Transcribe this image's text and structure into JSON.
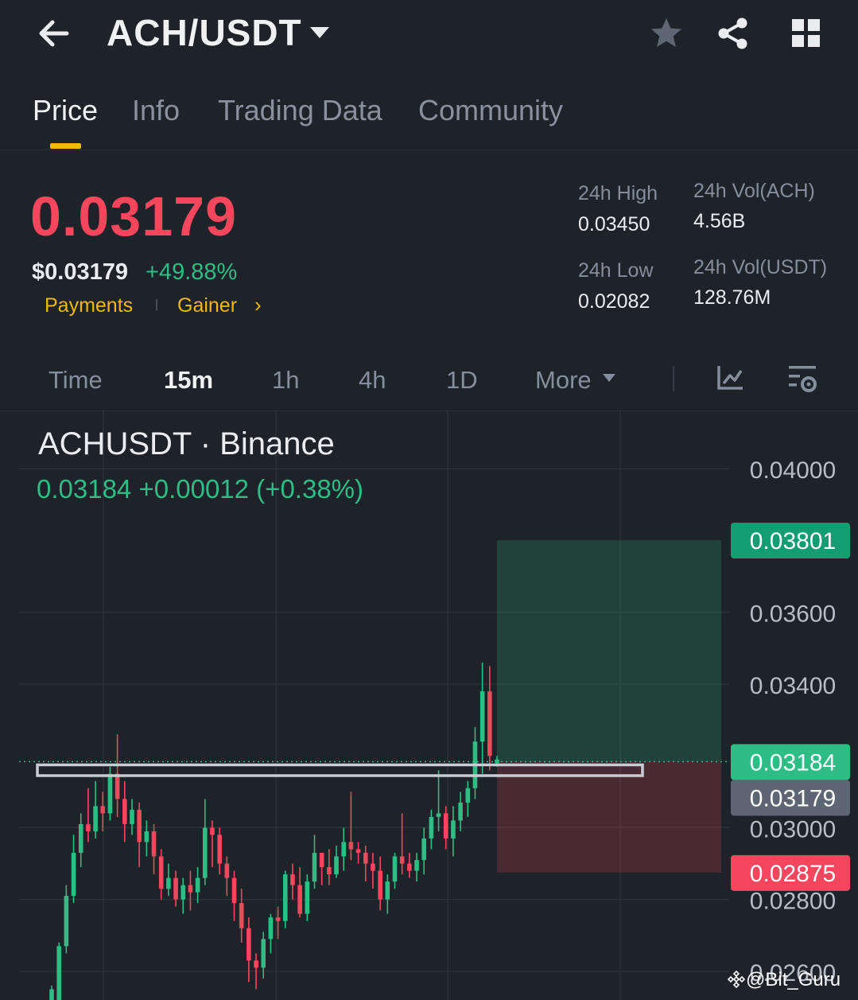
{
  "header": {
    "title": "ACH/USDT",
    "icons": [
      "back-arrow-icon",
      "chevron-down-icon",
      "star-icon",
      "share-icon",
      "grid-icon"
    ]
  },
  "tabs": [
    {
      "label": "Price",
      "active": true
    },
    {
      "label": "Info",
      "active": false
    },
    {
      "label": "Trading Data",
      "active": false
    },
    {
      "label": "Community",
      "active": false
    }
  ],
  "price": {
    "last": "0.03179",
    "usd": "$0.03179",
    "change": "+49.88%",
    "tags": [
      "Payments",
      "Gainer"
    ],
    "chevron": "›"
  },
  "stats": {
    "high_label": "24h High",
    "high_value": "0.03450",
    "low_label": "24h Low",
    "low_value": "0.02082",
    "vol_base_label": "24h Vol(ACH)",
    "vol_base_value": "4.56B",
    "vol_quote_label": "24h Vol(USDT)",
    "vol_quote_value": "128.76M"
  },
  "intervals": [
    {
      "label": "Time",
      "active": false
    },
    {
      "label": "15m",
      "active": true
    },
    {
      "label": "1h",
      "active": false
    },
    {
      "label": "4h",
      "active": false
    },
    {
      "label": "1D",
      "active": false
    },
    {
      "label": "More",
      "active": false
    }
  ],
  "chart_header": {
    "title": "ACHUSDT · Binance",
    "ohlc": "0.03184  +0.00012 (+0.38%)"
  },
  "colors": {
    "up": "#2ebd85",
    "down": "#f6465d",
    "accent": "#f0b90b",
    "background": "#1e2329"
  },
  "watermark": "@Bit_Guru",
  "chart_data": {
    "type": "candlestick",
    "title": "ACHUSDT · Binance",
    "ylim": [
      0.0252,
      0.0416
    ],
    "y_ticks": [
      "0.04000",
      "0.03600",
      "0.03400",
      "0.03000",
      "0.02800",
      "0.02600"
    ],
    "price_labels": [
      {
        "label": "0.03801",
        "value": 0.03801,
        "kind": "take-profit"
      },
      {
        "label": "0.03184",
        "value": 0.03184,
        "kind": "current"
      },
      {
        "label": "0.03179",
        "value": 0.03179,
        "kind": "last"
      },
      {
        "label": "0.02875",
        "value": 0.02875,
        "kind": "stop-loss"
      }
    ],
    "position": {
      "entry": 0.03184,
      "target": 0.03801,
      "stop": 0.02875
    },
    "resistance_zone": [
      0.03145,
      0.03175
    ],
    "candles": [
      [
        0.0247,
        0.0255,
        0.0244,
        0.0256
      ],
      [
        0.0243,
        0.0267,
        0.0241,
        0.0268
      ],
      [
        0.0267,
        0.0281,
        0.0265,
        0.0284
      ],
      [
        0.0281,
        0.0293,
        0.0279,
        0.0298
      ],
      [
        0.0293,
        0.0301,
        0.0289,
        0.0304
      ],
      [
        0.0301,
        0.0299,
        0.0296,
        0.0311
      ],
      [
        0.0299,
        0.0306,
        0.0297,
        0.0313
      ],
      [
        0.0306,
        0.0304,
        0.0299,
        0.031
      ],
      [
        0.0304,
        0.0315,
        0.0302,
        0.0317
      ],
      [
        0.0315,
        0.0308,
        0.0303,
        0.0326
      ],
      [
        0.0308,
        0.0301,
        0.0296,
        0.0313
      ],
      [
        0.0301,
        0.0305,
        0.0298,
        0.0308
      ],
      [
        0.0305,
        0.0296,
        0.0289,
        0.0307
      ],
      [
        0.0296,
        0.0299,
        0.0292,
        0.0302
      ],
      [
        0.0299,
        0.0292,
        0.0287,
        0.0301
      ],
      [
        0.0292,
        0.0283,
        0.028,
        0.0294
      ],
      [
        0.0283,
        0.0286,
        0.0281,
        0.029
      ],
      [
        0.0286,
        0.028,
        0.0278,
        0.0288
      ],
      [
        0.028,
        0.0284,
        0.0276,
        0.0286
      ],
      [
        0.0284,
        0.0282,
        0.0277,
        0.0288
      ],
      [
        0.0282,
        0.0286,
        0.0279,
        0.0289
      ],
      [
        0.0286,
        0.03,
        0.0284,
        0.0308
      ],
      [
        0.03,
        0.0298,
        0.0289,
        0.0302
      ],
      [
        0.0298,
        0.029,
        0.0287,
        0.03
      ],
      [
        0.029,
        0.0286,
        0.0281,
        0.0292
      ],
      [
        0.0286,
        0.0279,
        0.0274,
        0.0288
      ],
      [
        0.0279,
        0.0272,
        0.0268,
        0.0283
      ],
      [
        0.0272,
        0.0263,
        0.0257,
        0.0275
      ],
      [
        0.0263,
        0.0261,
        0.0255,
        0.0265
      ],
      [
        0.0261,
        0.0269,
        0.0258,
        0.0271
      ],
      [
        0.0269,
        0.0275,
        0.0265,
        0.0276
      ],
      [
        0.0275,
        0.0274,
        0.0269,
        0.0278
      ],
      [
        0.0274,
        0.0287,
        0.0272,
        0.0288
      ],
      [
        0.0287,
        0.0284,
        0.028,
        0.029
      ],
      [
        0.0284,
        0.0276,
        0.0275,
        0.0289
      ],
      [
        0.0276,
        0.0285,
        0.0274,
        0.0287
      ],
      [
        0.0285,
        0.0293,
        0.0283,
        0.0298
      ],
      [
        0.0293,
        0.0289,
        0.0284,
        0.0293
      ],
      [
        0.0289,
        0.0287,
        0.0284,
        0.0294
      ],
      [
        0.0287,
        0.0292,
        0.0286,
        0.0295
      ],
      [
        0.0292,
        0.0296,
        0.0288,
        0.03
      ],
      [
        0.0296,
        0.0294,
        0.0291,
        0.031
      ],
      [
        0.0294,
        0.0293,
        0.029,
        0.0296
      ],
      [
        0.0293,
        0.029,
        0.0285,
        0.0295
      ],
      [
        0.029,
        0.0288,
        0.0283,
        0.0293
      ],
      [
        0.0288,
        0.028,
        0.0277,
        0.0292
      ],
      [
        0.028,
        0.0285,
        0.0276,
        0.0287
      ],
      [
        0.0285,
        0.0292,
        0.0283,
        0.0293
      ],
      [
        0.0292,
        0.029,
        0.0287,
        0.0304
      ],
      [
        0.029,
        0.0288,
        0.0286,
        0.0293
      ],
      [
        0.0288,
        0.0291,
        0.0285,
        0.0293
      ],
      [
        0.0291,
        0.0297,
        0.0287,
        0.03
      ],
      [
        0.0297,
        0.0303,
        0.0294,
        0.0305
      ],
      [
        0.0303,
        0.0304,
        0.0299,
        0.0316
      ],
      [
        0.0304,
        0.0297,
        0.0294,
        0.0306
      ],
      [
        0.0297,
        0.0302,
        0.0292,
        0.0306
      ],
      [
        0.0302,
        0.0307,
        0.0299,
        0.031
      ],
      [
        0.0307,
        0.0311,
        0.0303,
        0.0313
      ],
      [
        0.0311,
        0.0324,
        0.0308,
        0.0328
      ],
      [
        0.0324,
        0.0338,
        0.0315,
        0.0346
      ],
      [
        0.0338,
        0.032,
        0.0316,
        0.0345
      ],
      [
        0.0318,
        0.0319,
        0.0317,
        0.032
      ]
    ]
  }
}
